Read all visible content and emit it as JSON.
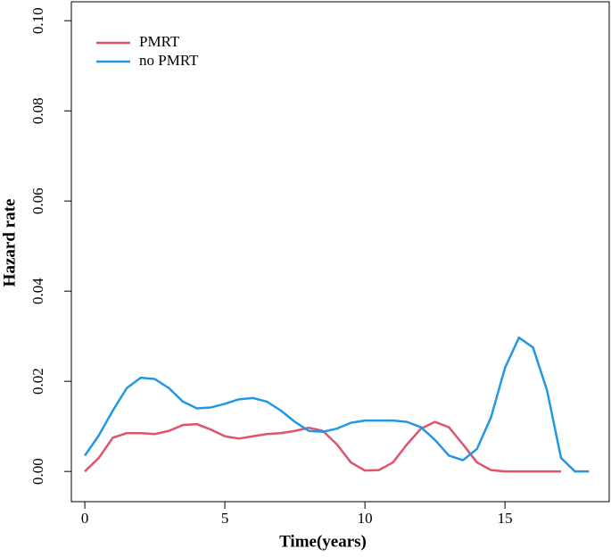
{
  "chart_data": {
    "type": "line",
    "x_label": "Time(years)",
    "y_label": "Hazard rate",
    "x": [
      0,
      0.5,
      1,
      1.5,
      2,
      2.5,
      3,
      3.5,
      4,
      4.5,
      5,
      5.5,
      6,
      6.5,
      7,
      7.5,
      8,
      8.5,
      9,
      9.5,
      10,
      10.5,
      11,
      11.5,
      12,
      12.5,
      13,
      13.5,
      14,
      14.5,
      15,
      15.5,
      16,
      16.5,
      17,
      17.5,
      18
    ],
    "series": [
      {
        "name": "PMRT",
        "color": "#df536b",
        "values": [
          0,
          0.003,
          0.0075,
          0.0085,
          0.0085,
          0.0083,
          0.009,
          0.0103,
          0.0105,
          0.0093,
          0.0078,
          0.0073,
          0.0078,
          0.0083,
          0.0085,
          0.009,
          0.0097,
          0.009,
          0.006,
          0.002,
          0.0002,
          0.0003,
          0.002,
          0.006,
          0.0095,
          0.011,
          0.0098,
          0.006,
          0.002,
          0.0003,
          0,
          0,
          0,
          0,
          0,
          null,
          null
        ]
      },
      {
        "name": "no PMRT",
        "color": "#2297e6",
        "values": [
          0.0035,
          0.008,
          0.0135,
          0.0185,
          0.0208,
          0.0205,
          0.0185,
          0.0155,
          0.014,
          0.0142,
          0.015,
          0.016,
          0.0163,
          0.0155,
          0.0135,
          0.011,
          0.009,
          0.0088,
          0.0095,
          0.0108,
          0.0113,
          0.0113,
          0.0113,
          0.011,
          0.0098,
          0.007,
          0.0035,
          0.0025,
          0.005,
          0.012,
          0.023,
          0.0297,
          0.0275,
          0.018,
          0.003,
          0,
          0
        ]
      }
    ],
    "xlim": [
      -0.48,
      18.72
    ],
    "ylim": [
      -0.0067,
      0.1042
    ],
    "xticks": [
      0,
      5,
      10,
      15
    ],
    "yticks": [
      {
        "value": 0,
        "label": "0.00"
      },
      {
        "value": 0.02,
        "label": "0.02"
      },
      {
        "value": 0.04,
        "label": "0.04"
      },
      {
        "value": 0.06,
        "label": "0.06"
      },
      {
        "value": 0.08,
        "label": "0.08"
      },
      {
        "value": 0.1,
        "label": "0.10"
      }
    ],
    "legend": "top-left"
  }
}
